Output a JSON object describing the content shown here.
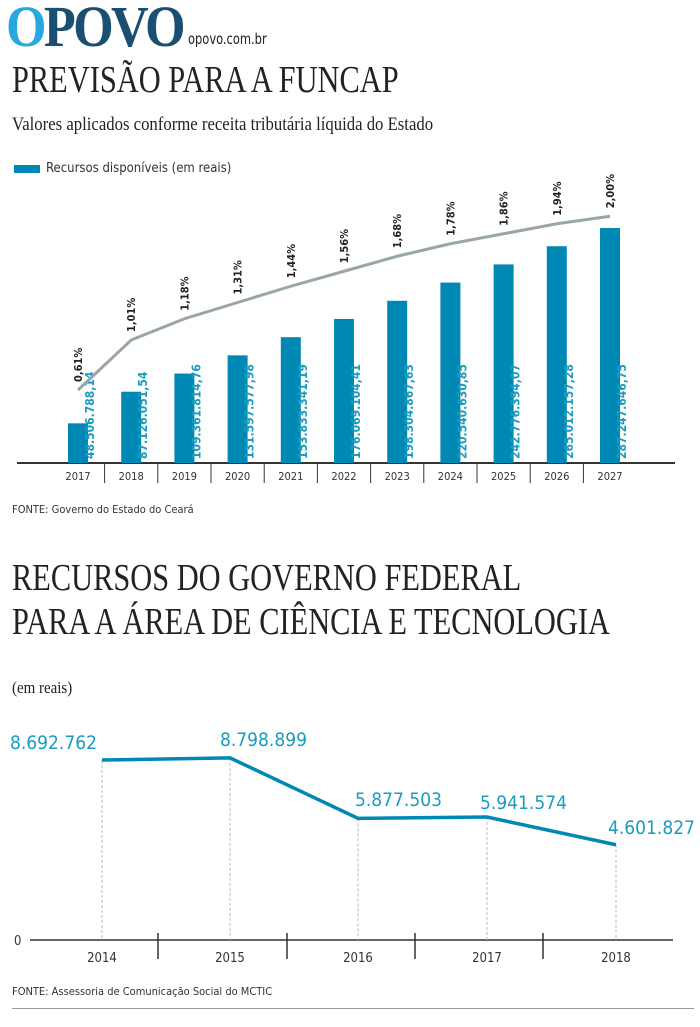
{
  "header": {
    "logo_first": "O",
    "logo_rest": "POVO",
    "site": "opovo.com.br"
  },
  "chart1": {
    "title": "PREVISÃO PARA A FUNCAP",
    "subtitle": "Valores aplicados conforme receita tributária líquida do Estado",
    "legend": "Recursos disponíveis (em reais)",
    "source": "FONTE: Governo do Estado do Ceará"
  },
  "chart2": {
    "title_line1": "RECURSOS DO GOVERNO FEDERAL",
    "title_line2": "PARA A ÁREA DE CIÊNCIA E TECNOLOGIA",
    "unit": "(em reais)",
    "source": "FONTE: Assessoria de Comunicação Social do MCTIC"
  },
  "colors": {
    "bar": "#0088b5",
    "pct_line": "#9aa5ab",
    "line2": "#0088b5",
    "label_teal": "#1a9cc0"
  },
  "chart_data": [
    {
      "type": "bar",
      "categories": [
        "2017",
        "2018",
        "2019",
        "2020",
        "2021",
        "2022",
        "2023",
        "2024",
        "2025",
        "2026",
        "2027"
      ],
      "series": [
        {
          "name": "Recursos disponíveis (em reais)",
          "values": [
            48506788.14,
            87126051.54,
            109361814.76,
            131597577.98,
            153833341.19,
            176069104.41,
            198304867.63,
            220540630.85,
            242776394.07,
            265012157.28,
            287247646.75
          ],
          "labels": [
            "48.506.788,14",
            "87.126.051,54",
            "109.361.814,76",
            "131.597.577,98",
            "153.833.341,19",
            "176.069.104,41",
            "198.304.867,63",
            "220.540.630,85",
            "242.776.394,07",
            "265.012.157,28",
            "287.247.646,75"
          ]
        },
        {
          "type": "line",
          "values": [
            0.61,
            1.01,
            1.18,
            1.31,
            1.44,
            1.56,
            1.68,
            1.78,
            1.86,
            1.94,
            2.0
          ],
          "labels": [
            "0,61%",
            "1,01%",
            "1,18%",
            "1,31%",
            "1,44%",
            "1,56%",
            "1,68%",
            "1,78%",
            "1,86%",
            "1,94%",
            "2,00%"
          ]
        }
      ]
    },
    {
      "type": "line",
      "categories": [
        "2014",
        "2015",
        "2016",
        "2017",
        "2018"
      ],
      "values": [
        8692762,
        8798899,
        5877503,
        5941574,
        4601827
      ],
      "labels": [
        "8.692.762",
        "8.798.899",
        "5.877.503",
        "5.941.574",
        "4.601.827"
      ],
      "yticks": [
        "0"
      ]
    }
  ]
}
